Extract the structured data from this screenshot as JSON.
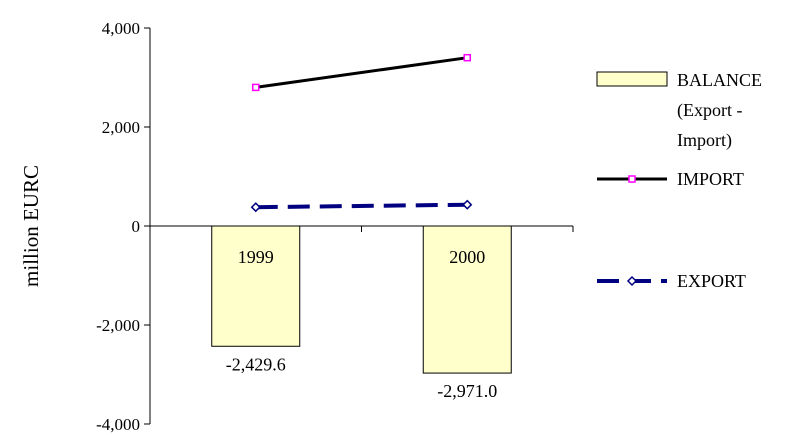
{
  "chart_data": {
    "type": "bar",
    "categories": [
      "1999",
      "2000"
    ],
    "ylabel": "million EURC",
    "ylim": [
      -4000,
      4000
    ],
    "yticks": [
      4000,
      2000,
      0,
      -2000,
      -4000
    ],
    "ytick_labels": [
      "4,000",
      "2,000",
      "0",
      "-2,000",
      "-4,000"
    ],
    "grid": false,
    "legend_position": "right",
    "series": [
      {
        "name": "BALANCE (Export - Import)",
        "legend_lines": [
          "BALANCE",
          "(Export -",
          "Import)"
        ],
        "kind": "bar",
        "values": [
          -2429.6,
          -2971.0
        ],
        "data_labels": [
          "-2,429.6",
          "-2,971.0"
        ],
        "color": "#ffffcc",
        "edge_color": "#000000"
      },
      {
        "name": "IMPORT",
        "kind": "line",
        "values": [
          2800,
          3400
        ],
        "color": "#000000",
        "marker": "square",
        "marker_color": "#ff00ff"
      },
      {
        "name": "EXPORT",
        "kind": "line",
        "values": [
          380,
          430
        ],
        "color": "#000080",
        "line_style": "dashed",
        "marker": "diamond",
        "marker_color": "#000080"
      }
    ]
  }
}
